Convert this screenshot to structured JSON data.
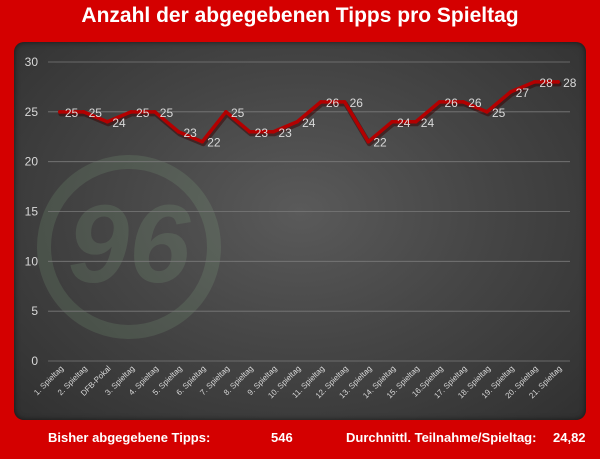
{
  "title": "Anzahl der abgegebenen Tipps pro Spieltag",
  "footer": {
    "total_label": "Bisher abgegebene Tipps:",
    "total_value": "546",
    "avg_label": "Durchnittl. Teilnahme/Spieltag:",
    "avg_value": "24,82"
  },
  "colors": {
    "background": "#d40000",
    "line": "#b30000",
    "label": "#d9d9d9"
  },
  "chart_data": {
    "type": "line",
    "title": "Anzahl der abgegebenen Tipps pro Spieltag",
    "categories": [
      "1. Spieltag",
      "2. Spieltag",
      "DFB-Pokal",
      "3. Spieltag",
      "4. Spieltag",
      "5. Spieltag",
      "6. Spieltag",
      "7. Spieltag",
      "8. Spieltag",
      "9. Spieltag",
      "10. Spieltag",
      "11. Spieltag",
      "12. Spieltag",
      "13. Spieltag",
      "14. Spieltag",
      "15. Spieltag",
      "16.Spieltag",
      "17. Spieltag",
      "18. Spieltag",
      "19. Spieltag",
      "20. Spieltag",
      "21. Spieltag"
    ],
    "values": [
      25,
      25,
      24,
      25,
      25,
      23,
      22,
      25,
      23,
      23,
      24,
      26,
      26,
      22,
      24,
      24,
      26,
      26,
      25,
      27,
      28,
      28
    ],
    "yticks": [
      0,
      5,
      10,
      15,
      20,
      25,
      30
    ],
    "ylim": [
      0,
      30
    ],
    "grid": true,
    "legend": "none"
  }
}
